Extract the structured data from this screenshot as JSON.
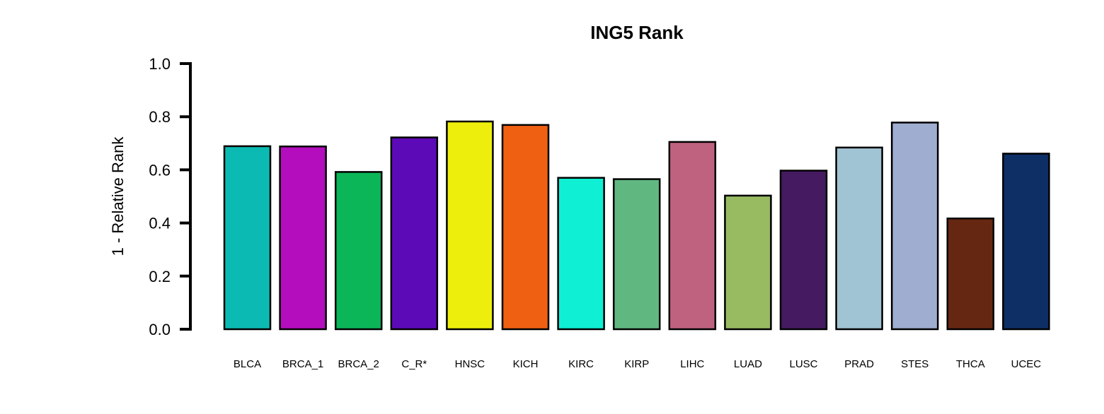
{
  "chart_data": {
    "type": "bar",
    "title": "ING5 Rank",
    "xlabel": "",
    "ylabel": "1 - Relative Rank",
    "ylim": [
      0,
      1.0
    ],
    "yticks": [
      "0.0",
      "0.2",
      "0.4",
      "0.6",
      "0.8",
      "1.0"
    ],
    "grid": false,
    "categories": [
      "BLCA",
      "BRCA_1",
      "BRCA_2",
      "C_R*",
      "HNSC",
      "KICH",
      "KIRC",
      "KIRP",
      "LIHC",
      "LUAD",
      "LUSC",
      "PRAD",
      "STES",
      "THCA",
      "UCEC"
    ],
    "values": [
      0.689,
      0.688,
      0.592,
      0.722,
      0.782,
      0.769,
      0.57,
      0.565,
      0.705,
      0.503,
      0.597,
      0.684,
      0.778,
      0.417,
      0.661
    ],
    "colors": [
      "#0BBBB3",
      "#B40DBE",
      "#0BB659",
      "#5C0AB7",
      "#EEEE0C",
      "#F06012",
      "#0FEFD3",
      "#60B880",
      "#BE6280",
      "#98BB62",
      "#461A60",
      "#A0C4D4",
      "#9EADD0",
      "#662712",
      "#0E2F66"
    ]
  }
}
